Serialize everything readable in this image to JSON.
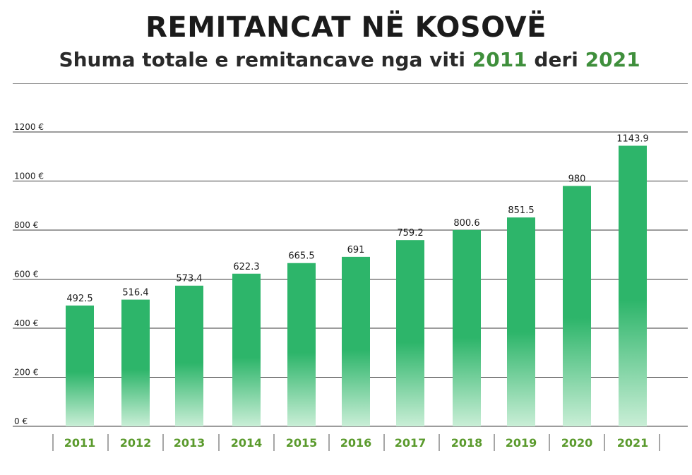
{
  "title": "REMITANCAT NË KOSOVË",
  "subtitle": {
    "prefix": "Shuma totale e remitancave nga viti",
    "year_from": "2011",
    "middle": "deri",
    "year_to": "2021"
  },
  "colors": {
    "bar_top": "#2db56a",
    "bar_bottom": "#c9eed6",
    "year_label": "#5a9a2c",
    "grid": "#3a3a3a"
  },
  "chart_data": {
    "type": "bar",
    "title": "REMITANCAT NË KOSOVË",
    "categories": [
      "2011",
      "2012",
      "2013",
      "2014",
      "2015",
      "2016",
      "2017",
      "2018",
      "2019",
      "2020",
      "2021"
    ],
    "values": [
      492.5,
      516.4,
      573.4,
      622.3,
      665.5,
      691,
      759.2,
      800.6,
      851.5,
      980,
      1143.9
    ],
    "value_labels": [
      "492.5",
      "516.4",
      "573.4",
      "622.3",
      "665.5",
      "691",
      "759.2",
      "800.6",
      "851.5",
      "980",
      "1143.9"
    ],
    "y_ticks": [
      "0 €",
      "200 €",
      "400 €",
      "600 €",
      "800 €",
      "1000 €",
      "1200 €"
    ],
    "ylim": [
      0,
      1200
    ],
    "xlabel": "",
    "ylabel": "",
    "grid": true,
    "legend": "none"
  }
}
